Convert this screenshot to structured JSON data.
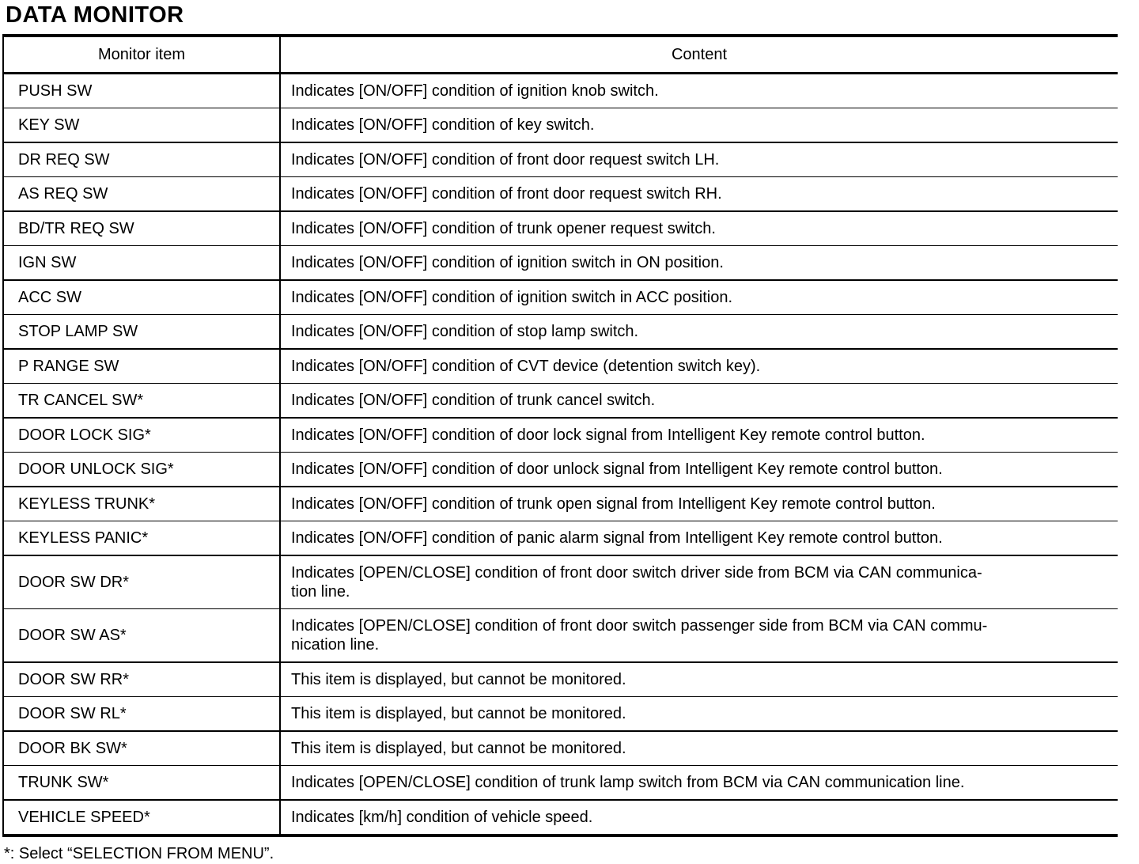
{
  "title": "DATA MONITOR",
  "table": {
    "headers": [
      "Monitor item",
      "Content"
    ],
    "rows": [
      {
        "item": "PUSH SW",
        "content": "Indicates [ON/OFF] condition of ignition knob switch."
      },
      {
        "item": "KEY SW",
        "content": "Indicates [ON/OFF] condition of key switch."
      },
      {
        "item": "DR REQ SW",
        "content": "Indicates [ON/OFF] condition of front door request switch LH."
      },
      {
        "item": "AS REQ SW",
        "content": "Indicates [ON/OFF] condition of front door request switch RH."
      },
      {
        "item": "BD/TR REQ SW",
        "content": "Indicates [ON/OFF] condition of trunk opener request switch."
      },
      {
        "item": "IGN SW",
        "content": "Indicates [ON/OFF] condition of ignition switch in ON position."
      },
      {
        "item": "ACC SW",
        "content": "Indicates [ON/OFF] condition of ignition switch in ACC position."
      },
      {
        "item": "STOP LAMP SW",
        "content": "Indicates [ON/OFF] condition of stop lamp switch."
      },
      {
        "item": "P RANGE SW",
        "content": "Indicates [ON/OFF] condition of CVT device (detention switch key)."
      },
      {
        "item": "TR CANCEL SW*",
        "content": "Indicates [ON/OFF] condition of trunk cancel switch."
      },
      {
        "item": "DOOR LOCK SIG*",
        "content": "Indicates [ON/OFF] condition of door lock signal from Intelligent Key remote control button."
      },
      {
        "item": "DOOR UNLOCK SIG*",
        "content": "Indicates [ON/OFF] condition of door unlock signal from Intelligent Key remote control button."
      },
      {
        "item": "KEYLESS TRUNK*",
        "content": "Indicates [ON/OFF] condition of trunk open signal from Intelligent Key remote control button."
      },
      {
        "item": "KEYLESS PANIC*",
        "content": "Indicates [ON/OFF] condition of panic alarm signal from Intelligent Key remote control button."
      },
      {
        "item": "DOOR SW DR*",
        "content": "Indicates [OPEN/CLOSE] condition of front door switch driver side from BCM via CAN communica-\ntion line."
      },
      {
        "item": "DOOR SW AS*",
        "content": "Indicates [OPEN/CLOSE] condition of front door switch passenger side from BCM via CAN commu-\nnication line."
      },
      {
        "item": "DOOR SW RR*",
        "content": "This item is displayed, but cannot be monitored."
      },
      {
        "item": "DOOR SW RL*",
        "content": "This item is displayed, but cannot be monitored."
      },
      {
        "item": "DOOR BK SW*",
        "content": "This item is displayed, but cannot be monitored."
      },
      {
        "item": "TRUNK SW*",
        "content": "Indicates [OPEN/CLOSE] condition of trunk lamp switch from BCM via CAN communication line."
      },
      {
        "item": "VEHICLE SPEED*",
        "content": "Indicates [km/h] condition of vehicle speed."
      }
    ]
  },
  "footnote": "*: Select “SELECTION FROM MENU”."
}
